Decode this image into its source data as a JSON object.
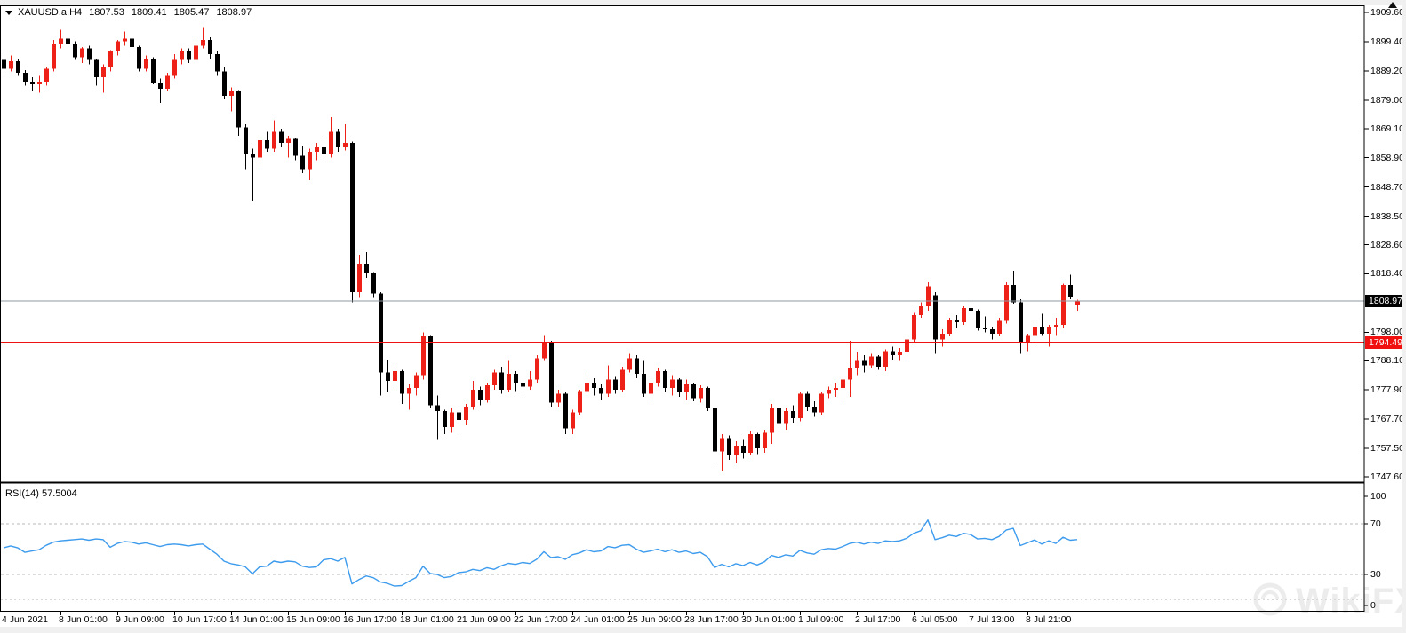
{
  "quote_bar": {
    "symbol": "XAUUSD.a,H4",
    "open": "1807.53",
    "high": "1809.41",
    "low": "1805.47",
    "close": "1808.97"
  },
  "price_axis": {
    "labels": [
      "1909.60",
      "1899.40",
      "1889.20",
      "1879.00",
      "1869.10",
      "1858.90",
      "1848.70",
      "1838.50",
      "1828.60",
      "1818.40",
      "1798.00",
      "1788.10",
      "1777.90",
      "1767.70",
      "1757.50",
      "1747.60"
    ],
    "current_price": "1808.97",
    "hline_price": "1794.49"
  },
  "rsi_panel": {
    "label": "RSI(14) 57.5004",
    "axis_labels": [
      "100",
      "70",
      "30",
      "0"
    ]
  },
  "time_axis": {
    "labels": [
      "4 Jun 2021",
      "8 Jun 01:00",
      "9 Jun 09:00",
      "10 Jun 17:00",
      "14 Jun 01:00",
      "15 Jun 09:00",
      "16 Jun 17:00",
      "18 Jun 01:00",
      "21 Jun 09:00",
      "22 Jun 17:00",
      "24 Jun 01:00",
      "25 Jun 09:00",
      "28 Jun 17:00",
      "30 Jun 01:00",
      "1 Jul 09:00",
      "2 Jul 17:00",
      "6 Jul 05:00",
      "7 Jul 13:00",
      "8 Jul 21:00"
    ],
    "bars_per_label": 8
  },
  "watermark": {
    "text": "WikiFX"
  },
  "colors": {
    "up": "#ee2119",
    "down": "#000000",
    "rsi_line": "#3d9bee",
    "hline_red": "#ee1111",
    "current_price_line": "#8d98a1",
    "frame": "#000000",
    "level_dash": "#b8b8b8",
    "level_dash_minor": "#d8d8d8"
  },
  "chart_data": [
    {
      "type": "candlestick",
      "title": "XAUUSD.a H4 candles",
      "up_color": "red",
      "down_color": "black",
      "ylim_visible": [
        1743.0,
        1913.0
      ],
      "y_ticks": [
        1909.6,
        1899.4,
        1889.2,
        1879.0,
        1869.1,
        1858.9,
        1848.7,
        1838.5,
        1828.6,
        1818.4,
        1798.0,
        1788.1,
        1777.9,
        1767.7,
        1757.5,
        1747.6
      ],
      "x_labels": [
        "4 Jun 2021",
        "8 Jun 01:00",
        "9 Jun 09:00",
        "10 Jun 17:00",
        "14 Jun 01:00",
        "15 Jun 09:00",
        "16 Jun 17:00",
        "18 Jun 01:00",
        "21 Jun 09:00",
        "22 Jun 17:00",
        "24 Jun 01:00",
        "25 Jun 09:00",
        "28 Jun 17:00",
        "30 Jun 01:00",
        "1 Jul 09:00",
        "2 Jul 17:00",
        "6 Jul 05:00",
        "7 Jul 13:00",
        "8 Jul 21:00"
      ],
      "x_label_every_n_bars": 8,
      "hlines": [
        {
          "name": "support-line",
          "value": 1794.49,
          "color": "#ee1111"
        },
        {
          "name": "current-price-line",
          "value": 1808.97,
          "color": "#8d98a1"
        }
      ],
      "ohlc": [
        [
          1893.0,
          1896.0,
          1888.0,
          1890.0
        ],
        [
          1890.0,
          1894.5,
          1889.0,
          1892.5
        ],
        [
          1892.5,
          1893.5,
          1887.5,
          1888.5
        ],
        [
          1888.5,
          1889.5,
          1884.0,
          1885.5
        ],
        [
          1885.5,
          1887.0,
          1882.0,
          1884.5
        ],
        [
          1884.5,
          1887.5,
          1881.5,
          1885.5
        ],
        [
          1885.5,
          1890.5,
          1884.0,
          1890.0
        ],
        [
          1890.0,
          1900.0,
          1889.0,
          1898.5
        ],
        [
          1898.5,
          1903.5,
          1897.0,
          1900.5
        ],
        [
          1900.5,
          1906.5,
          1897.5,
          1898.5
        ],
        [
          1898.5,
          1899.5,
          1893.0,
          1894.0
        ],
        [
          1894.0,
          1897.5,
          1892.0,
          1897.0
        ],
        [
          1897.0,
          1898.0,
          1891.5,
          1893.0
        ],
        [
          1893.0,
          1893.5,
          1884.0,
          1887.0
        ],
        [
          1887.0,
          1891.5,
          1881.5,
          1890.5
        ],
        [
          1890.5,
          1896.5,
          1889.0,
          1896.0
        ],
        [
          1896.0,
          1900.0,
          1894.5,
          1899.5
        ],
        [
          1899.5,
          1903.0,
          1898.0,
          1900.5
        ],
        [
          1900.5,
          1901.5,
          1896.0,
          1897.5
        ],
        [
          1897.5,
          1898.0,
          1889.0,
          1890.0
        ],
        [
          1890.0,
          1894.5,
          1889.0,
          1893.5
        ],
        [
          1893.5,
          1894.0,
          1884.5,
          1885.0
        ],
        [
          1885.0,
          1886.5,
          1878.0,
          1883.0
        ],
        [
          1883.0,
          1888.5,
          1882.0,
          1887.5
        ],
        [
          1887.5,
          1895.0,
          1886.5,
          1893.0
        ],
        [
          1893.0,
          1897.0,
          1891.5,
          1896.0
        ],
        [
          1896.0,
          1897.0,
          1892.0,
          1893.0
        ],
        [
          1893.0,
          1901.0,
          1892.5,
          1898.0
        ],
        [
          1898.0,
          1904.5,
          1897.0,
          1900.0
        ],
        [
          1900.0,
          1901.0,
          1893.5,
          1895.0
        ],
        [
          1895.0,
          1896.0,
          1887.5,
          1889.0
        ],
        [
          1889.0,
          1890.5,
          1879.5,
          1880.5
        ],
        [
          1880.5,
          1883.5,
          1875.0,
          1882.0
        ],
        [
          1882.0,
          1882.5,
          1866.5,
          1869.5
        ],
        [
          1869.5,
          1870.5,
          1855.0,
          1860.0
        ],
        [
          1860.0,
          1862.0,
          1844.0,
          1859.0
        ],
        [
          1859.0,
          1866.0,
          1856.5,
          1865.0
        ],
        [
          1865.0,
          1868.0,
          1861.0,
          1862.0
        ],
        [
          1862.0,
          1872.0,
          1861.0,
          1868.0
        ],
        [
          1868.0,
          1869.0,
          1862.5,
          1864.0
        ],
        [
          1864.0,
          1866.5,
          1859.0,
          1865.5
        ],
        [
          1865.5,
          1866.0,
          1858.0,
          1859.5
        ],
        [
          1859.5,
          1863.0,
          1853.5,
          1855.0
        ],
        [
          1855.0,
          1862.0,
          1851.0,
          1861.0
        ],
        [
          1861.0,
          1864.0,
          1858.0,
          1862.5
        ],
        [
          1862.5,
          1864.5,
          1858.5,
          1860.0
        ],
        [
          1860.0,
          1873.0,
          1859.0,
          1868.0
        ],
        [
          1868.0,
          1869.0,
          1861.0,
          1862.5
        ],
        [
          1862.5,
          1870.5,
          1861.5,
          1864.0
        ],
        [
          1864.0,
          1864.5,
          1808.5,
          1812.0
        ],
        [
          1812.0,
          1825.0,
          1810.0,
          1822.0
        ],
        [
          1822.0,
          1826.0,
          1817.0,
          1818.5
        ],
        [
          1818.5,
          1819.0,
          1810.0,
          1811.5
        ],
        [
          1811.5,
          1812.0,
          1776.0,
          1784.0
        ],
        [
          1784.0,
          1788.5,
          1777.0,
          1781.0
        ],
        [
          1781.0,
          1786.0,
          1778.0,
          1784.5
        ],
        [
          1784.5,
          1785.0,
          1773.0,
          1776.5
        ],
        [
          1776.5,
          1780.0,
          1771.0,
          1778.5
        ],
        [
          1778.5,
          1784.0,
          1776.0,
          1783.0
        ],
        [
          1783.0,
          1798.0,
          1781.5,
          1796.5
        ],
        [
          1796.5,
          1797.0,
          1771.5,
          1772.5
        ],
        [
          1772.5,
          1776.0,
          1760.5,
          1770.5
        ],
        [
          1770.5,
          1771.0,
          1762.5,
          1765.0
        ],
        [
          1765.0,
          1771.5,
          1763.0,
          1770.0
        ],
        [
          1770.0,
          1771.0,
          1762.0,
          1767.5
        ],
        [
          1767.5,
          1773.0,
          1765.5,
          1772.0
        ],
        [
          1772.0,
          1781.0,
          1771.0,
          1778.0
        ],
        [
          1778.0,
          1779.0,
          1772.5,
          1774.5
        ],
        [
          1774.5,
          1780.5,
          1773.5,
          1779.5
        ],
        [
          1779.5,
          1785.0,
          1778.0,
          1784.0
        ],
        [
          1784.0,
          1786.0,
          1776.5,
          1778.0
        ],
        [
          1778.0,
          1788.0,
          1777.0,
          1783.5
        ],
        [
          1783.5,
          1784.5,
          1777.5,
          1780.5
        ],
        [
          1780.5,
          1782.0,
          1776.0,
          1779.0
        ],
        [
          1779.0,
          1784.5,
          1778.0,
          1781.5
        ],
        [
          1781.5,
          1790.0,
          1780.5,
          1789.0
        ],
        [
          1789.0,
          1797.0,
          1788.0,
          1794.5
        ],
        [
          1794.5,
          1795.0,
          1772.0,
          1773.5
        ],
        [
          1773.5,
          1778.0,
          1772.0,
          1776.5
        ],
        [
          1776.5,
          1777.0,
          1762.5,
          1764.5
        ],
        [
          1764.5,
          1771.0,
          1762.5,
          1770.0
        ],
        [
          1770.0,
          1778.0,
          1769.0,
          1777.5
        ],
        [
          1777.5,
          1784.0,
          1776.5,
          1780.5
        ],
        [
          1780.5,
          1782.0,
          1776.0,
          1778.5
        ],
        [
          1778.5,
          1780.0,
          1774.5,
          1776.5
        ],
        [
          1776.5,
          1786.5,
          1775.5,
          1781.5
        ],
        [
          1781.5,
          1782.5,
          1776.5,
          1778.0
        ],
        [
          1778.0,
          1786.0,
          1777.0,
          1785.0
        ],
        [
          1785.0,
          1790.5,
          1784.0,
          1789.0
        ],
        [
          1789.0,
          1790.0,
          1782.0,
          1783.5
        ],
        [
          1783.5,
          1788.0,
          1775.5,
          1776.5
        ],
        [
          1776.5,
          1782.0,
          1774.0,
          1780.5
        ],
        [
          1780.5,
          1785.5,
          1779.0,
          1784.5
        ],
        [
          1784.5,
          1785.0,
          1777.0,
          1778.5
        ],
        [
          1778.5,
          1783.0,
          1776.0,
          1781.5
        ],
        [
          1781.5,
          1782.0,
          1775.5,
          1777.0
        ],
        [
          1777.0,
          1781.5,
          1774.5,
          1780.0
        ],
        [
          1780.0,
          1780.5,
          1774.0,
          1775.0
        ],
        [
          1775.0,
          1779.5,
          1773.5,
          1778.5
        ],
        [
          1778.5,
          1779.0,
          1770.5,
          1771.5
        ],
        [
          1771.5,
          1772.0,
          1750.5,
          1756.5
        ],
        [
          1756.5,
          1762.5,
          1749.5,
          1761.0
        ],
        [
          1761.0,
          1762.0,
          1753.5,
          1755.0
        ],
        [
          1755.0,
          1760.0,
          1752.5,
          1758.5
        ],
        [
          1758.5,
          1760.5,
          1754.0,
          1756.0
        ],
        [
          1756.0,
          1763.5,
          1755.0,
          1762.5
        ],
        [
          1762.5,
          1763.0,
          1755.5,
          1757.5
        ],
        [
          1757.5,
          1764.0,
          1756.0,
          1763.0
        ],
        [
          1763.0,
          1773.0,
          1759.0,
          1771.5
        ],
        [
          1771.5,
          1772.0,
          1764.5,
          1766.0
        ],
        [
          1766.0,
          1771.5,
          1764.0,
          1770.5
        ],
        [
          1770.5,
          1772.5,
          1766.5,
          1768.0
        ],
        [
          1768.0,
          1777.0,
          1767.0,
          1776.5
        ],
        [
          1776.5,
          1777.5,
          1770.5,
          1772.0
        ],
        [
          1772.0,
          1774.0,
          1768.5,
          1770.0
        ],
        [
          1770.0,
          1777.0,
          1769.0,
          1776.5
        ],
        [
          1776.5,
          1779.0,
          1775.0,
          1778.0
        ],
        [
          1778.0,
          1780.5,
          1775.5,
          1778.5
        ],
        [
          1778.5,
          1782.0,
          1773.5,
          1781.5
        ],
        [
          1781.5,
          1795.0,
          1775.5,
          1785.5
        ],
        [
          1785.5,
          1791.0,
          1783.0,
          1788.0
        ],
        [
          1788.0,
          1790.0,
          1784.0,
          1786.5
        ],
        [
          1786.5,
          1790.5,
          1785.5,
          1789.5
        ],
        [
          1789.5,
          1790.0,
          1785.0,
          1786.0
        ],
        [
          1786.0,
          1792.0,
          1784.5,
          1791.5
        ],
        [
          1791.5,
          1793.0,
          1788.5,
          1790.0
        ],
        [
          1790.0,
          1792.5,
          1788.0,
          1791.0
        ],
        [
          1791.0,
          1797.0,
          1789.5,
          1795.5
        ],
        [
          1795.5,
          1805.0,
          1794.5,
          1804.0
        ],
        [
          1804.0,
          1808.5,
          1803.0,
          1807.0
        ],
        [
          1807.0,
          1815.5,
          1805.5,
          1814.0
        ],
        [
          1811.0,
          1812.0,
          1790.5,
          1795.5
        ],
        [
          1795.5,
          1799.0,
          1793.0,
          1797.5
        ],
        [
          1797.5,
          1803.0,
          1796.5,
          1802.5
        ],
        [
          1802.5,
          1804.0,
          1799.5,
          1801.5
        ],
        [
          1801.5,
          1807.0,
          1800.5,
          1806.5
        ],
        [
          1806.5,
          1808.0,
          1803.5,
          1805.5
        ],
        [
          1805.5,
          1806.0,
          1798.5,
          1799.5
        ],
        [
          1799.5,
          1803.5,
          1798.0,
          1799.0
        ],
        [
          1799.0,
          1800.0,
          1795.5,
          1797.5
        ],
        [
          1797.5,
          1803.0,
          1796.5,
          1802.0
        ],
        [
          1802.0,
          1815.5,
          1801.0,
          1814.5
        ],
        [
          1814.5,
          1819.5,
          1808.0,
          1808.5
        ],
        [
          1808.5,
          1809.5,
          1790.5,
          1794.5
        ],
        [
          1794.5,
          1797.5,
          1791.5,
          1797.0
        ],
        [
          1797.0,
          1800.5,
          1793.5,
          1800.0
        ],
        [
          1800.0,
          1804.5,
          1797.0,
          1797.5
        ],
        [
          1797.5,
          1800.5,
          1793.0,
          1800.0
        ],
        [
          1800.0,
          1803.0,
          1797.0,
          1800.5
        ],
        [
          1800.5,
          1815.0,
          1799.5,
          1814.5
        ],
        [
          1814.5,
          1818.0,
          1809.5,
          1810.5
        ],
        [
          1807.53,
          1809.41,
          1805.47,
          1808.97
        ]
      ]
    },
    {
      "type": "line",
      "name": "RSI(14)",
      "current_value": 57.5004,
      "ylim": [
        0,
        100
      ],
      "levels": [
        70,
        30
      ],
      "levels_minor": [
        10
      ],
      "values": [
        51,
        52.5,
        51,
        47.5,
        48.5,
        49.5,
        53,
        55.5,
        56.5,
        57,
        57.5,
        58,
        57,
        58,
        57.5,
        51.5,
        54.5,
        56,
        55.5,
        54,
        55,
        53.5,
        52,
        53.5,
        54,
        53.5,
        52.5,
        53.5,
        54,
        50,
        46,
        40.5,
        38.5,
        37.5,
        36,
        30.5,
        36,
        36.5,
        40.5,
        39.5,
        40.5,
        40,
        36.5,
        35.5,
        36,
        41.5,
        42.5,
        40.5,
        43.5,
        22.5,
        26,
        28.8,
        27.4,
        24,
        22.9,
        20.8,
        21.2,
        24.5,
        27.5,
        36.5,
        30.8,
        29.9,
        27.5,
        28.4,
        31.5,
        32,
        34,
        33,
        35.3,
        34,
        36.8,
        38.8,
        37.9,
        39.5,
        38.6,
        42,
        48,
        43.3,
        44,
        41.9,
        45.6,
        47,
        49.5,
        47.9,
        48.5,
        52,
        51.1,
        53,
        53.5,
        50,
        47.5,
        48.5,
        50,
        48,
        49.5,
        47.5,
        48.5,
        46.5,
        47.5,
        44,
        35.5,
        38,
        36,
        38.5,
        37,
        39.5,
        37.5,
        40,
        45,
        43.5,
        45.5,
        44.5,
        49,
        47,
        46,
        49.5,
        50.5,
        50,
        52,
        54.5,
        55.5,
        54,
        55.5,
        54.5,
        56.5,
        56,
        56.5,
        58.5,
        62.5,
        64.5,
        73,
        57.5,
        59,
        61,
        60,
        62.5,
        61.5,
        58,
        58.5,
        57.5,
        60,
        65,
        66.5,
        52.8,
        55,
        57.2,
        54,
        56.5,
        54.5,
        59.3,
        57,
        57.5004
      ]
    }
  ]
}
